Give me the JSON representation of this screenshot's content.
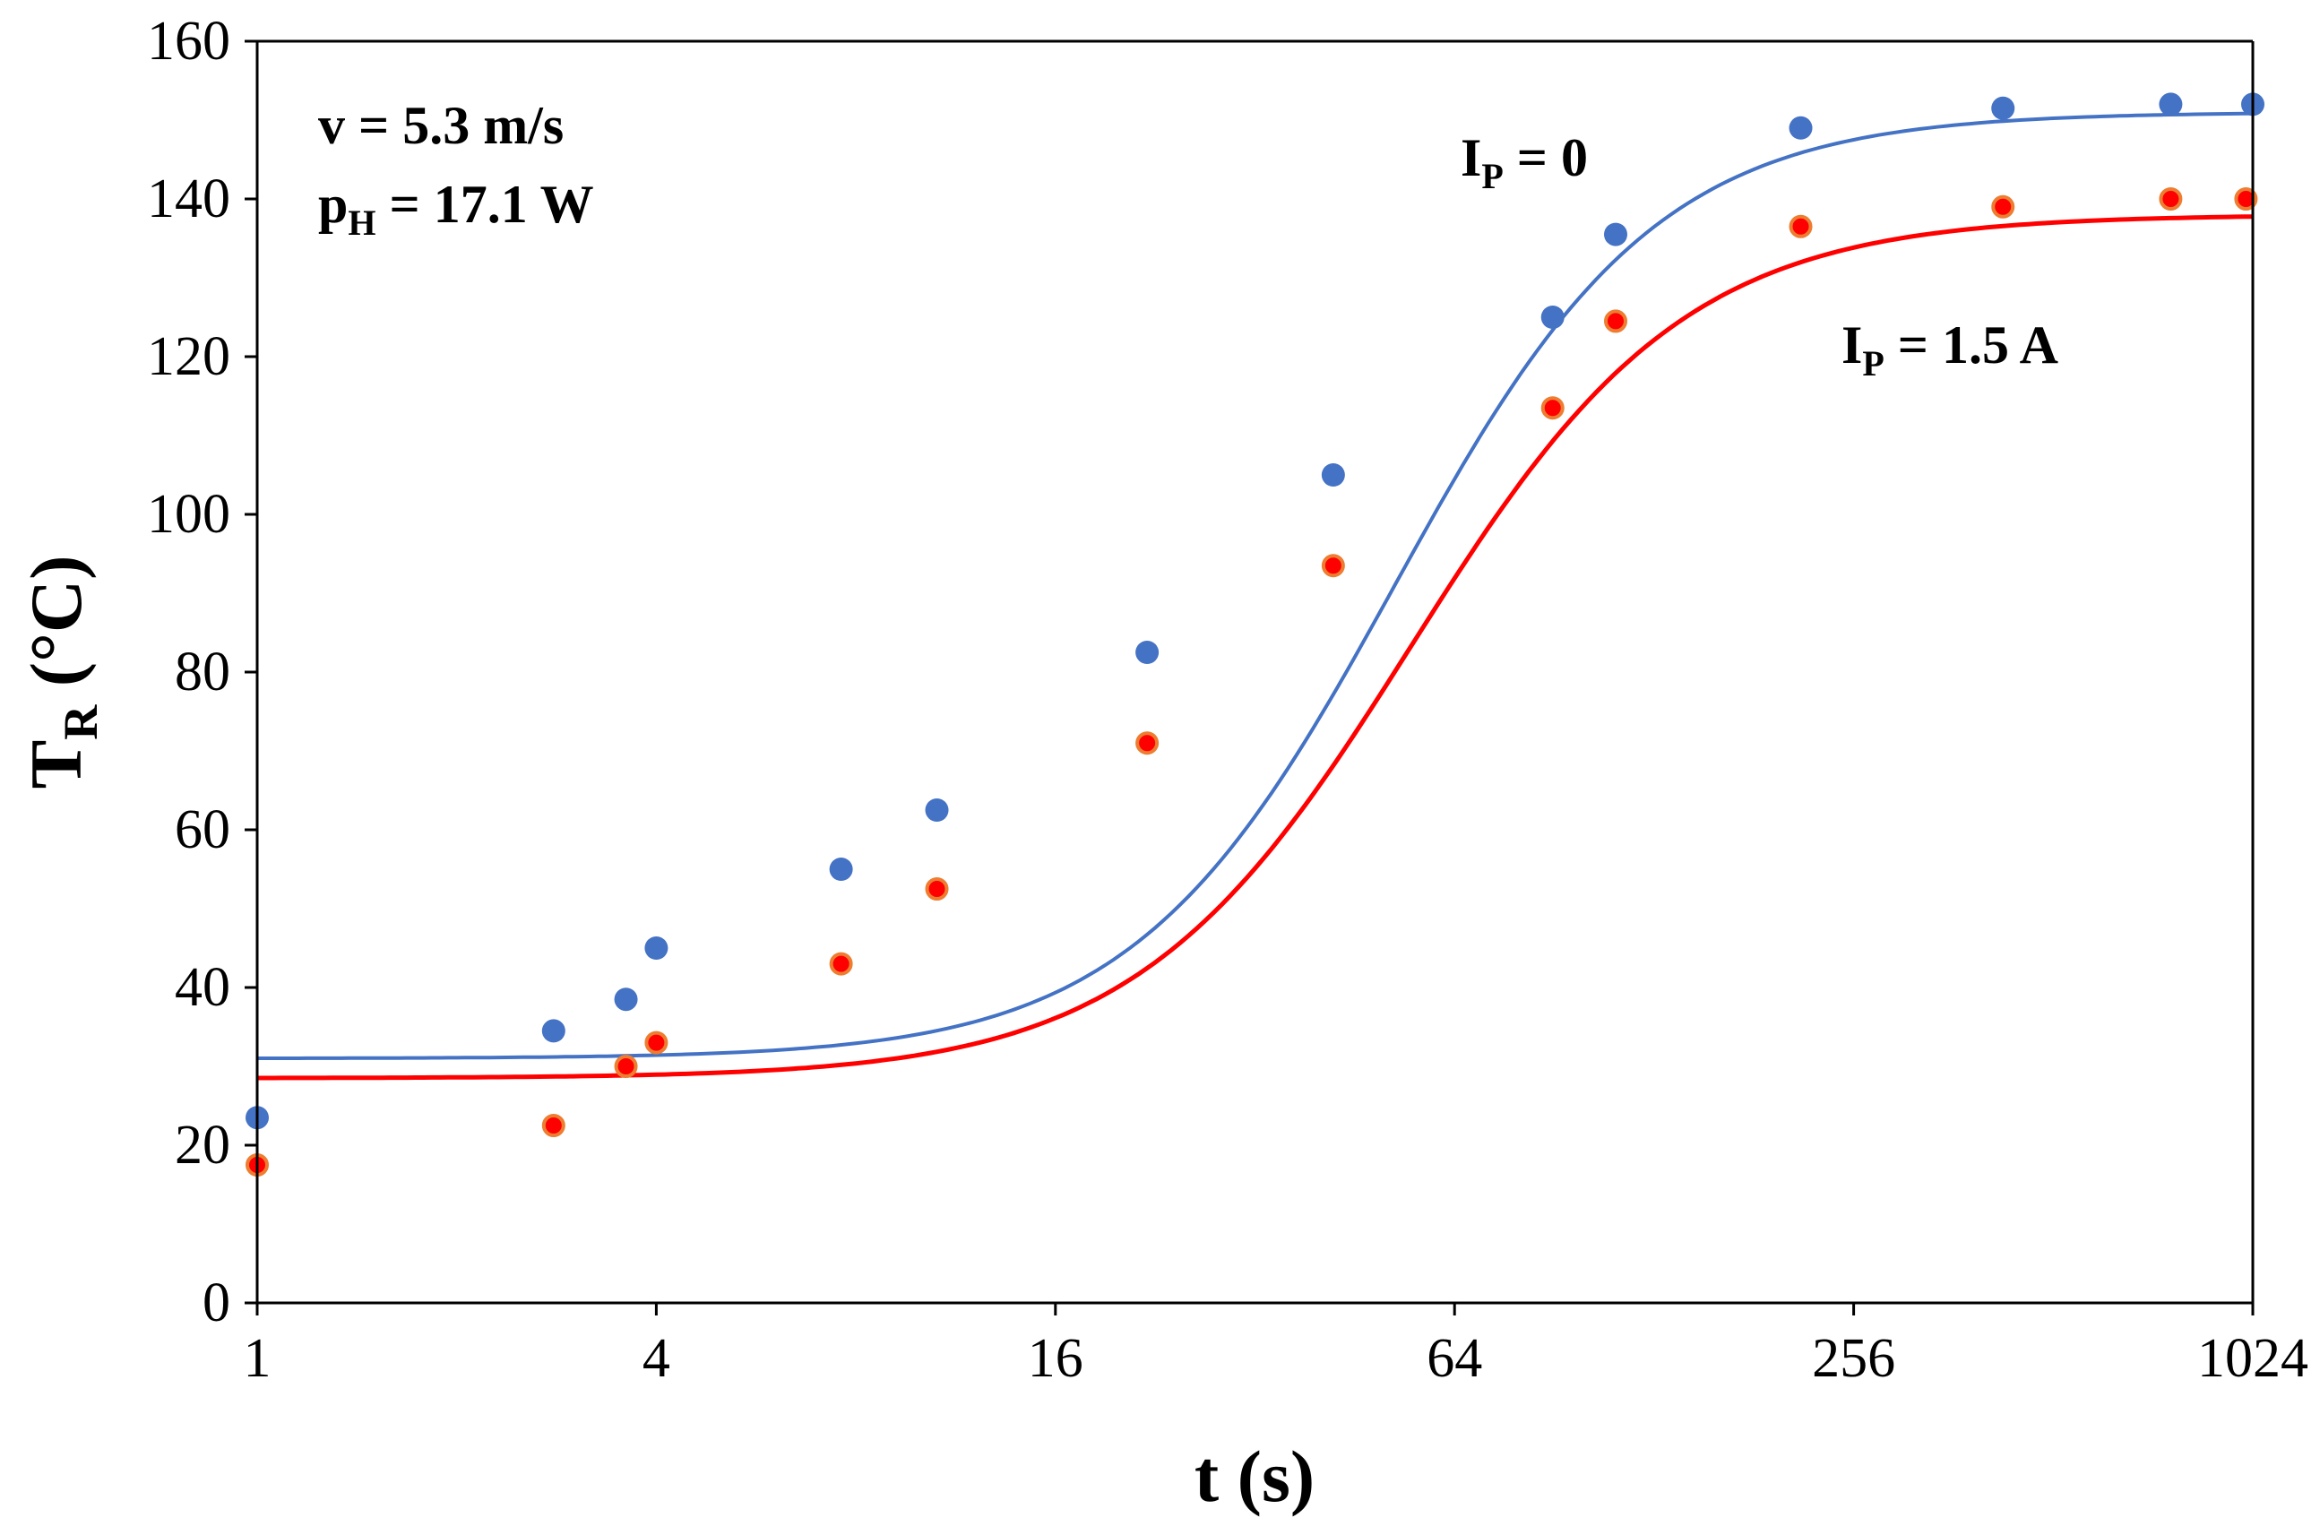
{
  "chart_data": {
    "type": "scatter",
    "title": "",
    "xlabel": "t (s)",
    "xscale": "log2",
    "xlim": [
      1,
      1024
    ],
    "xticks": [
      1,
      4,
      16,
      64,
      256,
      1024
    ],
    "ylim": [
      0,
      160
    ],
    "yticks": [
      0,
      20,
      40,
      60,
      80,
      100,
      120,
      140,
      160
    ],
    "ylabel": {
      "main": "T",
      "sub": "R",
      "rest": " (°C)"
    },
    "grid": false,
    "legend": "none",
    "annotations": [
      {
        "id": "conditions-v",
        "text": "v = 5.3 m/s"
      },
      {
        "id": "conditions-p",
        "main": "p",
        "sub": "H",
        "rest": " = 17.1 W"
      },
      {
        "id": "label-ip0",
        "main": "I",
        "sub": "P",
        "rest": " = 0"
      },
      {
        "id": "label-ip15",
        "main": "I",
        "sub": "P",
        "rest": " = 1.5 A"
      }
    ],
    "series": [
      {
        "name": "I_P = 0",
        "color": "#4472c4",
        "line_color": "#4472c4",
        "marker": "circle",
        "x": [
          1,
          2.8,
          3.6,
          4.0,
          7.6,
          10.6,
          22,
          42,
          90,
          112,
          213,
          430,
          770,
          1024
        ],
        "y": [
          23.5,
          34.5,
          38.5,
          45.0,
          55.0,
          62.5,
          82.5,
          105.0,
          125.0,
          135.5,
          149.0,
          151.5,
          152.0,
          152.0
        ],
        "fit": {
          "base": 31,
          "amplitude": 120,
          "tau": 52,
          "n": 2.2
        }
      },
      {
        "name": "I_P = 1.5 A",
        "color": "#ff0000",
        "line_color": "#ff0000",
        "marker": "circle",
        "marker_edge": "#ed7d31",
        "x": [
          1,
          2.8,
          3.6,
          4.0,
          7.6,
          10.6,
          22,
          42,
          90,
          112,
          213,
          430,
          770,
          1000
        ],
        "y": [
          17.5,
          22.5,
          30.0,
          33.0,
          43.0,
          52.5,
          71.0,
          93.5,
          113.5,
          124.5,
          136.5,
          139.0,
          140.0,
          140.0
        ],
        "fit": {
          "base": 28.5,
          "amplitude": 109.5,
          "tau": 55,
          "n": 2.1
        }
      }
    ]
  }
}
